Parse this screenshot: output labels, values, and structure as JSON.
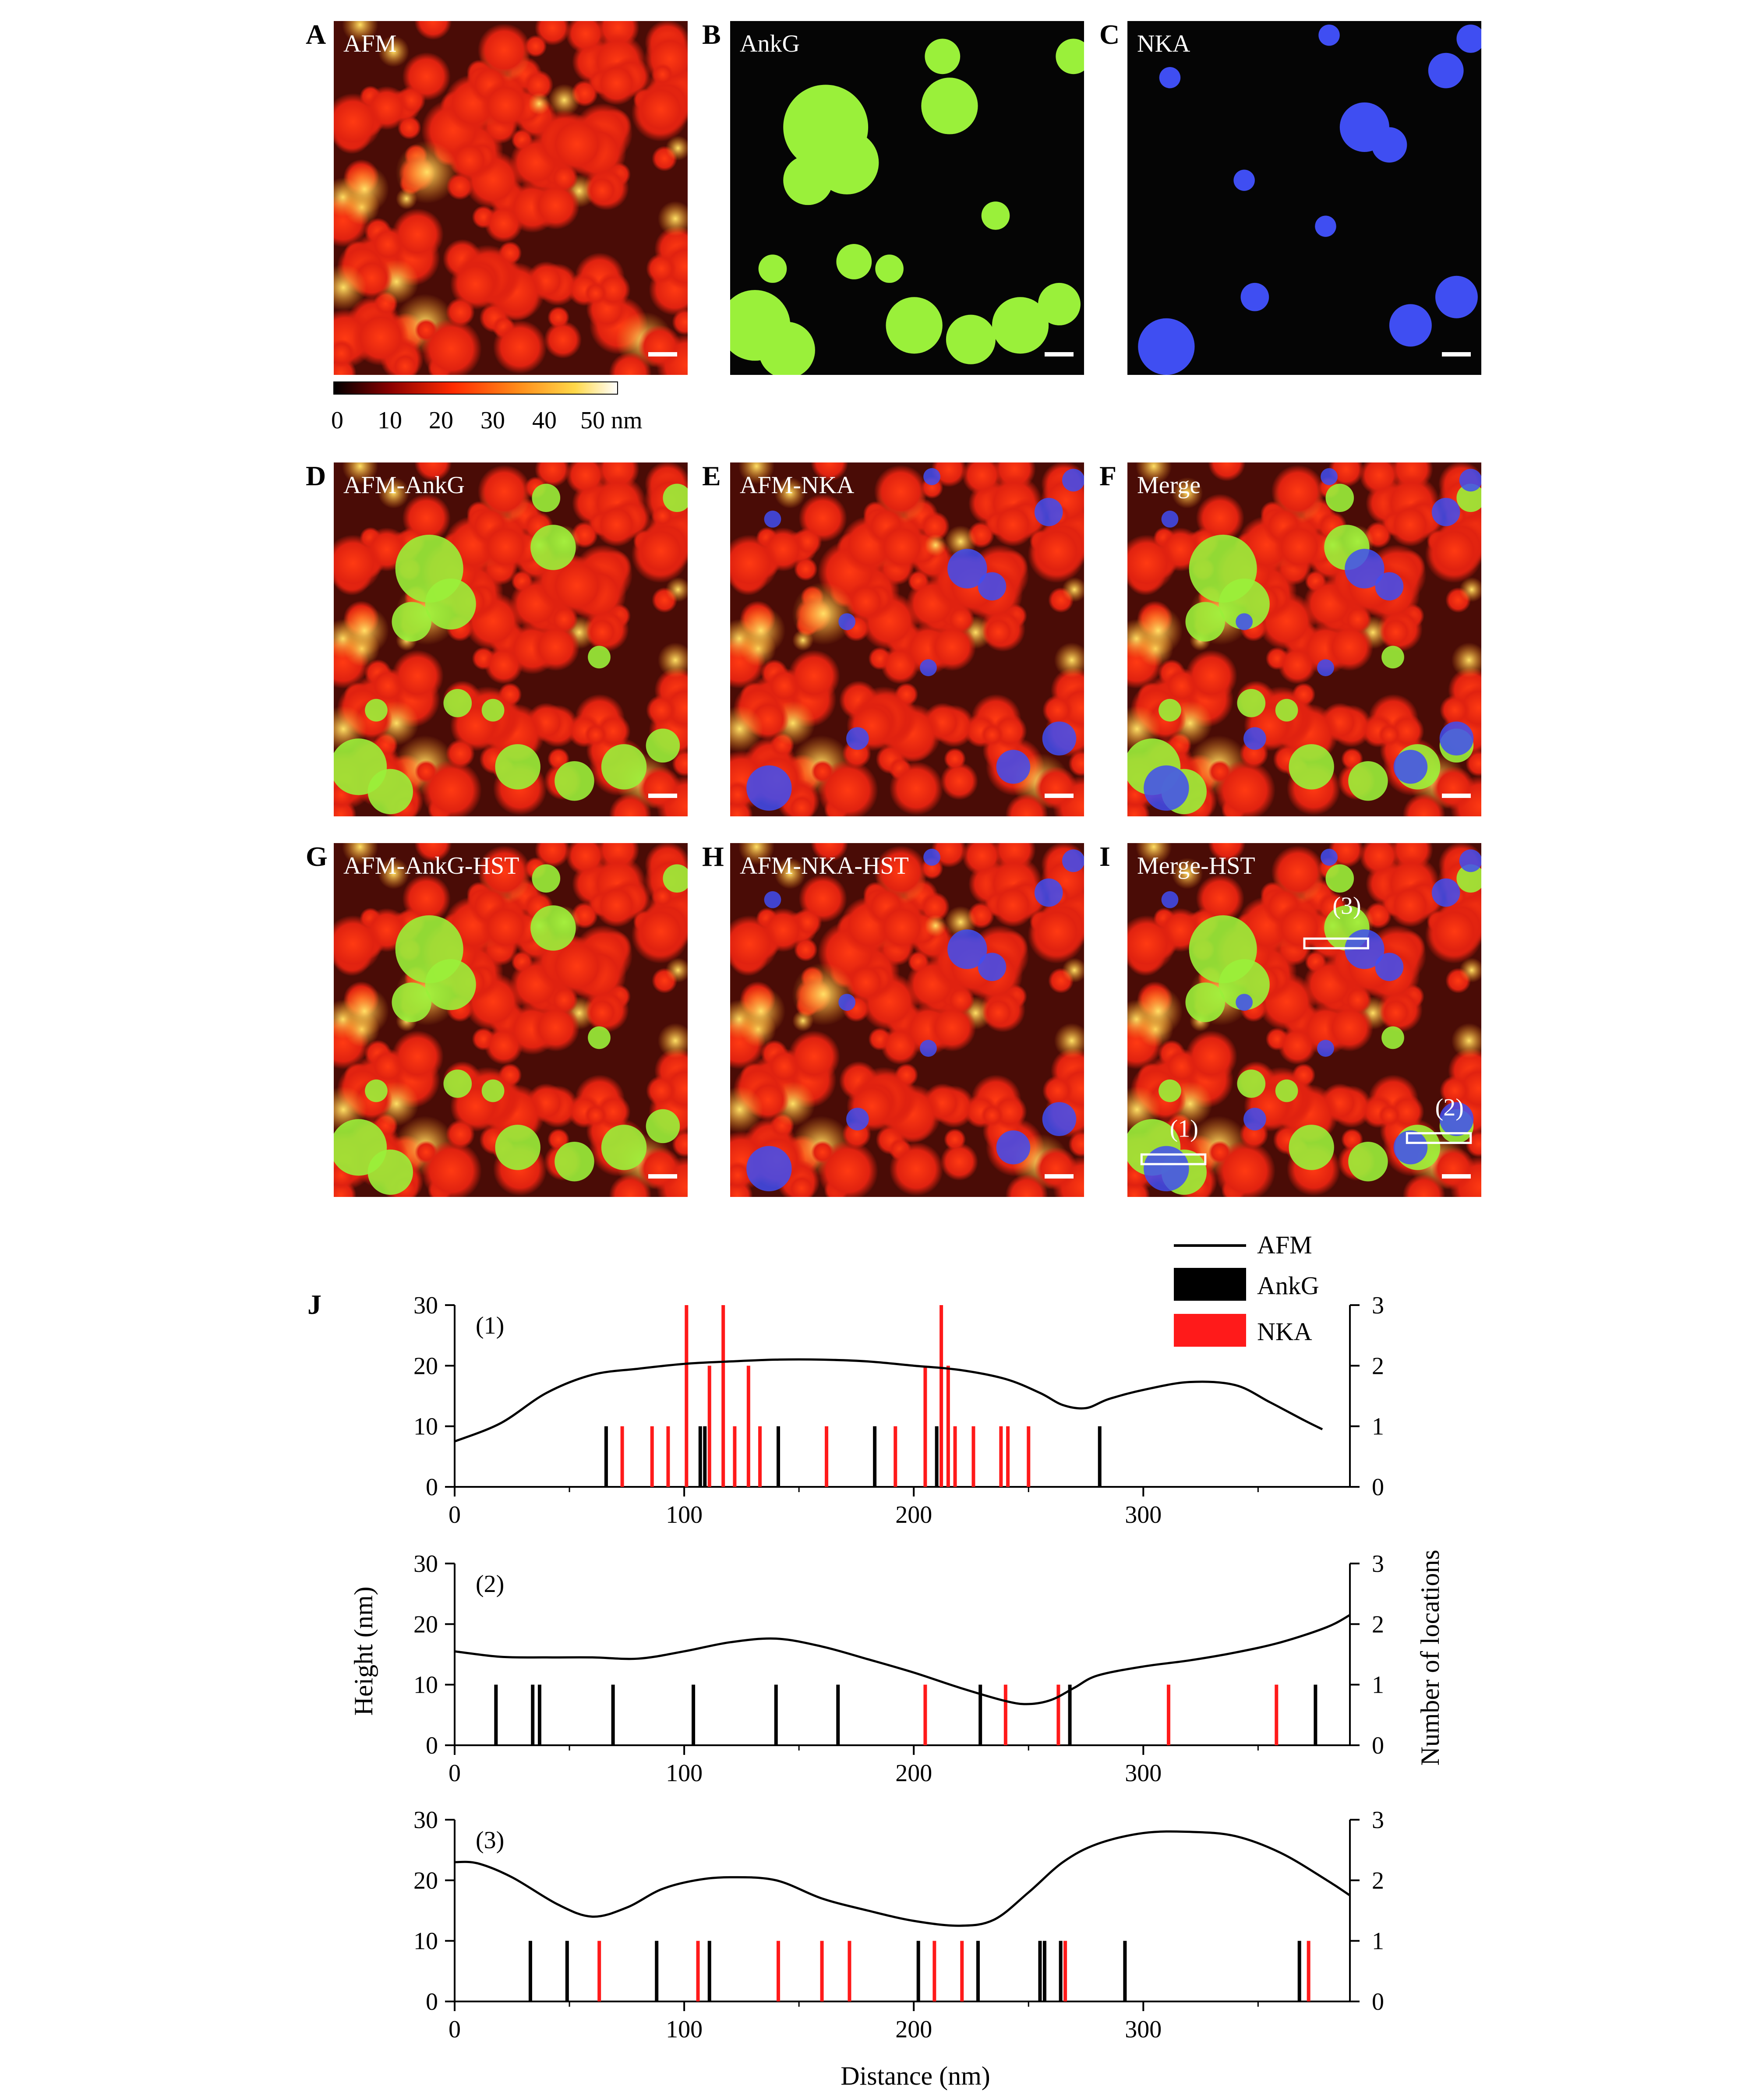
{
  "panels": [
    {
      "letter": "A",
      "label": "AFM",
      "layers": [
        "afm"
      ]
    },
    {
      "letter": "B",
      "label": "AnkG",
      "layers": [
        "ankg"
      ]
    },
    {
      "letter": "C",
      "label": "NKA",
      "layers": [
        "nka"
      ]
    },
    {
      "letter": "D",
      "label": "AFM-AnkG",
      "layers": [
        "afm",
        "ankg"
      ]
    },
    {
      "letter": "E",
      "label": "AFM-NKA",
      "layers": [
        "afm",
        "nka"
      ]
    },
    {
      "letter": "F",
      "label": "Merge",
      "layers": [
        "afm",
        "ankg",
        "nka"
      ]
    },
    {
      "letter": "G",
      "label": "AFM-AnkG-HST",
      "layers": [
        "afm",
        "ankg"
      ]
    },
    {
      "letter": "H",
      "label": "AFM-NKA-HST",
      "layers": [
        "afm",
        "nka"
      ]
    },
    {
      "letter": "I",
      "label": "Merge-HST",
      "layers": [
        "afm",
        "ankg",
        "nka"
      ]
    }
  ],
  "roi_labels": [
    "(1)",
    "(2)",
    "(3)"
  ],
  "colorbar": {
    "ticks": [
      "0",
      "10",
      "20",
      "30",
      "40",
      "50 nm"
    ],
    "colors": [
      "#000000",
      "#8b0000",
      "#ff2a00",
      "#ff8c1a",
      "#ffd84a",
      "#ffffff"
    ]
  },
  "colors": {
    "afm": "#e8230f",
    "ankg": "#9af03a",
    "nka": "#3f4ef2"
  },
  "panel_j": {
    "letter": "J",
    "legend": [
      {
        "name": "AFM",
        "style": "line",
        "color": "#000000"
      },
      {
        "name": "AnkG",
        "style": "bar",
        "color": "#000000"
      },
      {
        "name": "NKA",
        "style": "bar",
        "color": "#ff1a1a"
      }
    ],
    "y_left_label": "Height (nm)",
    "y_right_label": "Number of locations",
    "x_label": "Distance (nm)"
  },
  "chart_data": [
    {
      "type": "line",
      "tag": "(1)",
      "x_ticks": [
        "0",
        "100",
        "200",
        "300"
      ],
      "y_ticks": [
        "0",
        "10",
        "20",
        "30"
      ],
      "y2_ticks": [
        "0",
        "1",
        "2",
        "3"
      ],
      "xlim": [
        0,
        390
      ],
      "ylim": [
        0,
        30
      ],
      "y2lim": [
        0,
        3
      ],
      "afm": {
        "x": [
          0,
          20,
          40,
          60,
          80,
          100,
          120,
          140,
          160,
          180,
          200,
          220,
          240,
          255,
          265,
          275,
          285,
          300,
          320,
          340,
          355,
          370,
          378
        ],
        "y": [
          7.5,
          10.5,
          15.5,
          18.5,
          19.5,
          20.3,
          20.7,
          21,
          21,
          20.7,
          20,
          19.3,
          17.8,
          15.5,
          13.5,
          13,
          14.5,
          16,
          17.3,
          16.8,
          14,
          11,
          9.5
        ]
      },
      "ankg": [
        [
          66,
          1
        ],
        [
          107,
          1
        ],
        [
          109,
          1
        ],
        [
          141,
          1
        ],
        [
          183,
          1
        ],
        [
          210,
          1
        ],
        [
          281,
          1
        ]
      ],
      "nka": [
        [
          73,
          1
        ],
        [
          86,
          1
        ],
        [
          93,
          1
        ],
        [
          101,
          3
        ],
        [
          111,
          2
        ],
        [
          117,
          3
        ],
        [
          122,
          1
        ],
        [
          128,
          2
        ],
        [
          133,
          1
        ],
        [
          162,
          1
        ],
        [
          192,
          1
        ],
        [
          205,
          2
        ],
        [
          212,
          3
        ],
        [
          215,
          2
        ],
        [
          218,
          1
        ],
        [
          226,
          1
        ],
        [
          238,
          1
        ],
        [
          241,
          1
        ],
        [
          250,
          1
        ]
      ]
    },
    {
      "type": "line",
      "tag": "(2)",
      "x_ticks": [
        "0",
        "100",
        "200",
        "300"
      ],
      "y_ticks": [
        "0",
        "10",
        "20",
        "30"
      ],
      "y2_ticks": [
        "0",
        "1",
        "2",
        "3"
      ],
      "xlim": [
        0,
        390
      ],
      "ylim": [
        0,
        30
      ],
      "y2lim": [
        0,
        3
      ],
      "afm": {
        "x": [
          0,
          20,
          40,
          60,
          80,
          100,
          120,
          140,
          160,
          180,
          200,
          220,
          240,
          250,
          260,
          270,
          280,
          300,
          320,
          340,
          360,
          380,
          390
        ],
        "y": [
          15.5,
          14.6,
          14.5,
          14.5,
          14.3,
          15.5,
          17,
          17.6,
          16.3,
          14.2,
          12,
          9.5,
          7.3,
          6.8,
          7.5,
          9.5,
          11.5,
          13,
          14,
          15.3,
          17,
          19.5,
          21.5
        ]
      },
      "ankg": [
        [
          18,
          1
        ],
        [
          34,
          1
        ],
        [
          37,
          1
        ],
        [
          69,
          1
        ],
        [
          104,
          1
        ],
        [
          140,
          1
        ],
        [
          167,
          1
        ],
        [
          229,
          1
        ],
        [
          268,
          1
        ],
        [
          375,
          1
        ]
      ],
      "nka": [
        [
          205,
          1
        ],
        [
          240,
          1
        ],
        [
          263,
          1
        ],
        [
          311,
          1
        ],
        [
          358,
          1
        ]
      ]
    },
    {
      "type": "line",
      "tag": "(3)",
      "x_ticks": [
        "0",
        "100",
        "200",
        "300"
      ],
      "y_ticks": [
        "0",
        "10",
        "20",
        "30"
      ],
      "y2_ticks": [
        "0",
        "1",
        "2",
        "3"
      ],
      "xlim": [
        0,
        390
      ],
      "ylim": [
        0,
        30
      ],
      "y2lim": [
        0,
        3
      ],
      "afm": {
        "x": [
          0,
          10,
          25,
          45,
          60,
          75,
          90,
          105,
          120,
          140,
          160,
          180,
          200,
          220,
          235,
          250,
          265,
          280,
          300,
          320,
          340,
          360,
          380,
          390
        ],
        "y": [
          23,
          22.8,
          20.5,
          16,
          14,
          15.5,
          18.5,
          20,
          20.5,
          20,
          17,
          15,
          13.3,
          12.5,
          13.5,
          18,
          23,
          26,
          27.8,
          28,
          27.3,
          24.5,
          20,
          17.5
        ]
      },
      "ankg": [
        [
          33,
          1
        ],
        [
          49,
          1
        ],
        [
          88,
          1
        ],
        [
          111,
          1
        ],
        [
          202,
          1
        ],
        [
          228,
          1
        ],
        [
          255,
          1
        ],
        [
          257,
          1
        ],
        [
          264,
          1
        ],
        [
          292,
          1
        ],
        [
          368,
          1
        ]
      ],
      "nka": [
        [
          63,
          1
        ],
        [
          106,
          1
        ],
        [
          141,
          1
        ],
        [
          160,
          1
        ],
        [
          172,
          1
        ],
        [
          209,
          1
        ],
        [
          221,
          1
        ],
        [
          266,
          1
        ],
        [
          372,
          1
        ]
      ]
    }
  ]
}
